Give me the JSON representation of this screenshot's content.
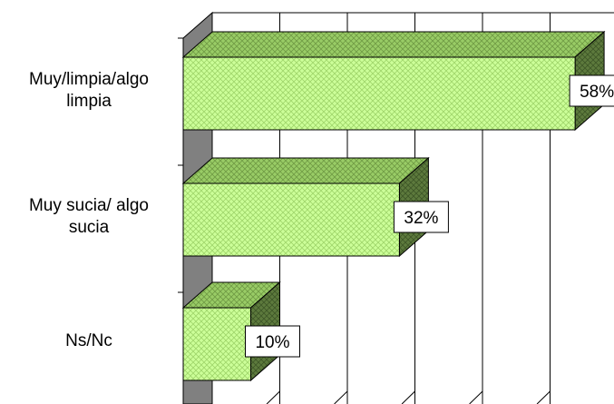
{
  "chart_data": {
    "type": "bar",
    "orientation": "horizontal",
    "three_d": true,
    "categories": [
      [
        "Muy/limpia/algo",
        "limpia"
      ],
      [
        "Muy sucia/ algo",
        "sucia"
      ],
      [
        "Ns/Nc"
      ]
    ],
    "values": [
      58,
      32,
      10
    ],
    "value_labels": [
      "58%",
      "32%",
      "10%"
    ],
    "xlim": [
      0,
      60
    ],
    "grid": true,
    "legend": "none",
    "title": "",
    "xlabel": "",
    "ylabel": ""
  },
  "colors": {
    "bar_front": "#ccff99",
    "bar_top": "#99cc66",
    "bar_side": "#5d7a3d",
    "bar_outline": "#000000",
    "wall": "#808080",
    "grid": "#000000"
  }
}
